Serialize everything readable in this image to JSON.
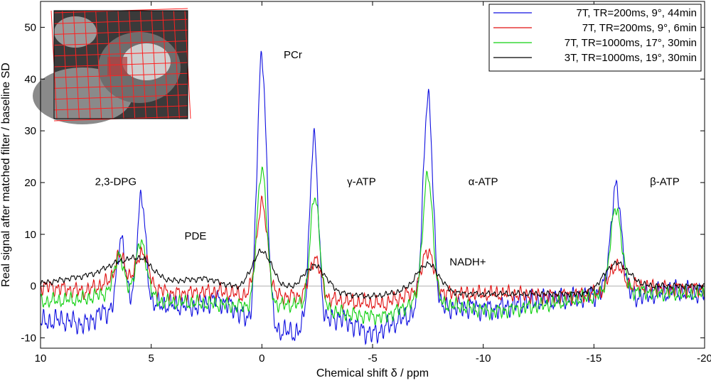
{
  "chart_data": {
    "type": "line",
    "title": "",
    "xlabel": "Chemical shift δ / ppm",
    "ylabel": "Real signal after matched filter / baseline SD",
    "xlim": [
      10,
      -20
    ],
    "ylim": [
      -12,
      55
    ],
    "x_reversed": true,
    "xticks": [
      10,
      5,
      0,
      -5,
      -10,
      -15,
      -20
    ],
    "xtick_labels": [
      "10",
      "5",
      "0",
      "-5",
      "-10",
      "-15",
      "-20"
    ],
    "yticks": [
      -10,
      0,
      10,
      20,
      30,
      40,
      50
    ],
    "ytick_labels": [
      "-10",
      "0",
      "10",
      "20",
      "30",
      "40",
      "50"
    ],
    "legend_position": "top-right",
    "inset_image": "cardiac MRI slice with red spectroscopy grid overlay",
    "series": [
      {
        "name": "7T, TR=200ms, 9°, 44min",
        "color": "#1010e0",
        "baseline": -5,
        "ripple": 2.2,
        "noise_x": [
          10,
          9,
          8,
          7.2,
          4.5,
          3,
          2,
          1,
          0.5,
          -1.5,
          -3.5,
          -5,
          -6,
          -7,
          -9,
          -10.5,
          -12,
          -14,
          -15.2,
          -17,
          -18.5,
          -20
        ],
        "noise_y": [
          -7,
          -6.5,
          -7.5,
          -5,
          -3.5,
          -4,
          -2.5,
          -5,
          -8,
          -9,
          -6,
          -9.5,
          -7,
          -5,
          -4,
          -4.5,
          -3,
          -2.5,
          -1.5,
          -2,
          -1,
          -1.5
        ],
        "peaks": [
          {
            "center": 6.35,
            "height": 14,
            "width": 0.18
          },
          {
            "center": 5.45,
            "height": 21,
            "width": 0.2
          },
          {
            "center": 0.0,
            "height": 52.5,
            "width": 0.22
          },
          {
            "center": -2.35,
            "height": 36,
            "width": 0.2
          },
          {
            "center": -7.5,
            "height": 41,
            "width": 0.22
          },
          {
            "center": -16.0,
            "height": 20.5,
            "width": 0.25
          }
        ]
      },
      {
        "name": "7T, TR=200ms, 9°, 6min",
        "color": "#e01010",
        "baseline": -1.5,
        "ripple": 1.6,
        "noise_x": [
          10,
          8,
          6.5,
          4,
          2,
          0.5,
          -1.5,
          -4,
          -5.5,
          -7,
          -9,
          -11,
          -13,
          -15,
          -17,
          -18.5,
          -20
        ],
        "noise_y": [
          0,
          -1,
          1.5,
          -1.5,
          -1,
          -2,
          -2,
          -3,
          -3.5,
          -1,
          -1.5,
          -1.5,
          -2,
          -1.5,
          0,
          -0.5,
          -0.5
        ],
        "peaks": [
          {
            "center": 6.4,
            "height": 4.5,
            "width": 0.22
          },
          {
            "center": 5.4,
            "height": 6.5,
            "width": 0.25
          },
          {
            "center": 0.0,
            "height": 17.8,
            "width": 0.25
          },
          {
            "center": -2.4,
            "height": 7.8,
            "width": 0.25
          },
          {
            "center": -7.5,
            "height": 8.2,
            "width": 0.25
          },
          {
            "center": -16.0,
            "height": 4.8,
            "width": 0.3
          }
        ]
      },
      {
        "name": "7T, TR=1000ms, 17°, 30min",
        "color": "#10d010",
        "baseline": -3,
        "ripple": 1.5,
        "noise_x": [
          10,
          8,
          6.8,
          4.5,
          2,
          0.5,
          -1.5,
          -4,
          -5.5,
          -7,
          -9,
          -10.5,
          -13,
          -15,
          -17,
          -18.5,
          -20
        ],
        "noise_y": [
          -3,
          -2.5,
          -1,
          -3,
          -3.5,
          -4,
          -3.5,
          -5.5,
          -6,
          -3,
          -4,
          -5,
          -3.5,
          -2,
          -1,
          -1.5,
          -1.5
        ],
        "peaks": [
          {
            "center": 6.45,
            "height": 7.5,
            "width": 0.2
          },
          {
            "center": 5.45,
            "height": 10.5,
            "width": 0.25
          },
          {
            "center": 0.0,
            "height": 26.8,
            "width": 0.22
          },
          {
            "center": -2.4,
            "height": 21.5,
            "width": 0.22
          },
          {
            "center": -7.5,
            "height": 24.5,
            "width": 0.23
          },
          {
            "center": -16.0,
            "height": 16.5,
            "width": 0.26
          }
        ]
      },
      {
        "name": "3T, TR=1000ms, 19°, 30min",
        "color": "#000000",
        "baseline": -1,
        "ripple": 0.6,
        "noise_x": [
          10,
          8,
          7,
          4,
          2.5,
          1,
          -1,
          -3.5,
          -5,
          -6.5,
          -9,
          -11,
          -13,
          -14.5,
          -17,
          -18.5,
          -20
        ],
        "noise_y": [
          0.5,
          2,
          3,
          1,
          1.5,
          -0.5,
          -0.5,
          -1.5,
          -2,
          -1,
          -1.5,
          -1.5,
          -1.5,
          -1.5,
          0,
          0,
          0
        ],
        "peaks": [
          {
            "center": 6.3,
            "height": 2.0,
            "width": 0.5
          },
          {
            "center": 5.4,
            "height": 3.0,
            "width": 0.45
          },
          {
            "center": 0.0,
            "height": 7.2,
            "width": 0.45
          },
          {
            "center": -2.4,
            "height": 5.0,
            "width": 0.5
          },
          {
            "center": -7.5,
            "height": 5.5,
            "width": 0.5
          },
          {
            "center": -16.0,
            "height": 5.0,
            "width": 0.55
          }
        ]
      }
    ],
    "annotations": [
      {
        "text": "PCr",
        "x": -1.4,
        "y": 44
      },
      {
        "text": "2,3-DPG",
        "x": 6.6,
        "y": 19.5
      },
      {
        "text": "PDE",
        "x": 3.0,
        "y": 9
      },
      {
        "text": "γ-ATP",
        "x": -4.5,
        "y": 19.5
      },
      {
        "text": "α-ATP",
        "x": -10.0,
        "y": 19.5
      },
      {
        "text": "NADH+",
        "x": -9.3,
        "y": 4
      },
      {
        "text": "β-ATP",
        "x": -18.2,
        "y": 19.5
      }
    ]
  }
}
